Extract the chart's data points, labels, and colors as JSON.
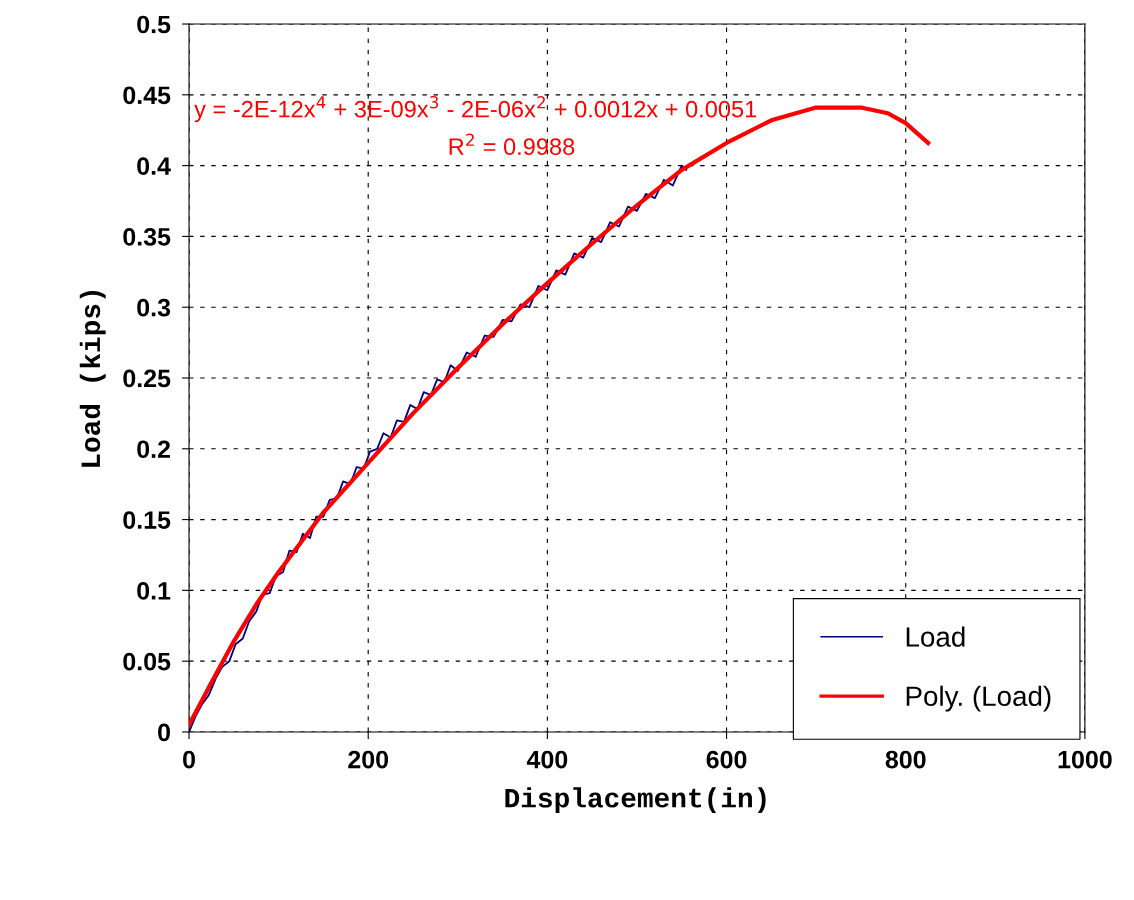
{
  "chart_data": {
    "type": "line",
    "xlabel": "Displacement(in)",
    "ylabel": "Load (kips)",
    "xlim": [
      0,
      1000
    ],
    "xticks": [
      0,
      200,
      400,
      600,
      800,
      1000
    ],
    "ylim": [
      0,
      0.5
    ],
    "yticks": [
      0,
      0.05,
      0.1,
      0.15,
      0.2,
      0.25,
      0.3,
      0.35,
      0.4,
      0.45,
      0.5
    ],
    "grid": true,
    "legend": "bottom right",
    "marker": "none",
    "line_style": "solid",
    "series": [
      {
        "name": "Load",
        "color": "#000080",
        "x": [
          0,
          8,
          15,
          22,
          30,
          37,
          45,
          52,
          60,
          67,
          75,
          82,
          90,
          97,
          105,
          112,
          120,
          127,
          135,
          142,
          150,
          157,
          165,
          172,
          180,
          187,
          195,
          202,
          210,
          217,
          225,
          232,
          240,
          247,
          255,
          262,
          270,
          277,
          285,
          292,
          300,
          310,
          320,
          330,
          340,
          350,
          360,
          370,
          380,
          390,
          400,
          410,
          420,
          430,
          440,
          450,
          460,
          470,
          480,
          490,
          500,
          510,
          520,
          530,
          540,
          550,
          555
        ],
        "values": [
          0.0,
          0.012,
          0.02,
          0.026,
          0.038,
          0.046,
          0.05,
          0.062,
          0.066,
          0.078,
          0.085,
          0.097,
          0.098,
          0.11,
          0.113,
          0.128,
          0.127,
          0.14,
          0.137,
          0.152,
          0.152,
          0.164,
          0.165,
          0.177,
          0.175,
          0.187,
          0.186,
          0.198,
          0.2,
          0.211,
          0.208,
          0.22,
          0.219,
          0.231,
          0.228,
          0.24,
          0.238,
          0.249,
          0.247,
          0.259,
          0.255,
          0.268,
          0.265,
          0.28,
          0.279,
          0.291,
          0.29,
          0.302,
          0.3,
          0.315,
          0.312,
          0.326,
          0.323,
          0.338,
          0.335,
          0.349,
          0.346,
          0.36,
          0.357,
          0.371,
          0.368,
          0.38,
          0.377,
          0.39,
          0.386,
          0.4,
          0.397
        ]
      },
      {
        "name": "Poly. (Load)",
        "color": "#ff0000",
        "x": [
          0,
          25,
          50,
          75,
          100,
          150,
          200,
          250,
          300,
          350,
          400,
          450,
          500,
          550,
          600,
          650,
          700,
          750,
          780,
          800,
          825
        ],
        "values": [
          0.005,
          0.035,
          0.064,
          0.09,
          0.113,
          0.155,
          0.19,
          0.225,
          0.257,
          0.288,
          0.317,
          0.345,
          0.372,
          0.397,
          0.416,
          0.432,
          0.441,
          0.441,
          0.437,
          0.43,
          0.416
        ]
      }
    ],
    "annotations": [
      "y = -2E-12x$^{4}$ + 3E-09x$^{3}$ - 2E-06x$^{2}$ + 0.0012x + 0.0051",
      "R$^{2}$ = 0.9988"
    ]
  }
}
